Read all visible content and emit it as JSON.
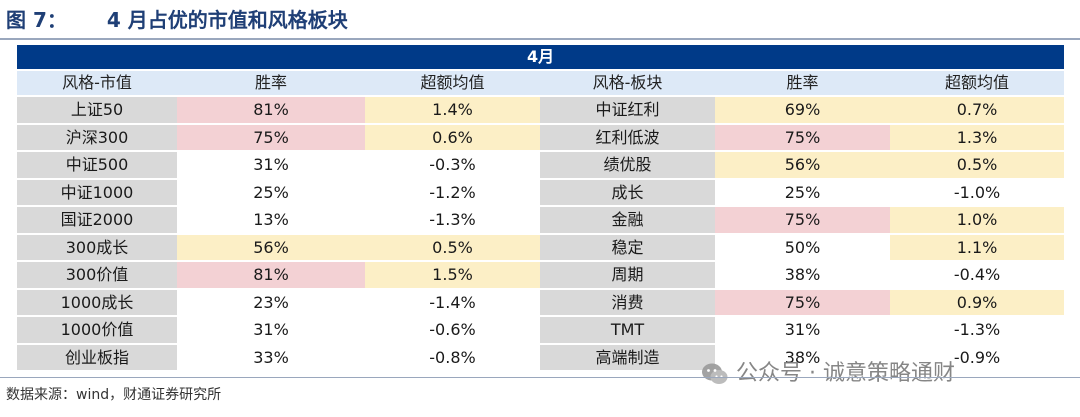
{
  "figure": {
    "label": "图 7：",
    "title": "4 月占优的市值和风格板块",
    "source": "数据来源：wind，财通证券研究所"
  },
  "table": {
    "month": "4月",
    "headers": [
      "风格-市值",
      "胜率",
      "超额均值",
      "风格-板块",
      "胜率",
      "超额均值"
    ],
    "colors": {
      "highlight_high": "#f3d1d4",
      "highlight_mid": "#fcefc6",
      "label_bg": "#d9d9d9",
      "header_bg": "#dde9f7",
      "month_bar": "#003a88"
    },
    "rows": [
      {
        "a_name": "上证50",
        "a_win": "81%",
        "a_excess": "1.4%",
        "b_name": "中证红利",
        "b_win": "69%",
        "b_excess": "0.7%",
        "hl": [
          "pink",
          "yellow",
          "yellow",
          "yellow"
        ]
      },
      {
        "a_name": "沪深300",
        "a_win": "75%",
        "a_excess": "0.6%",
        "b_name": "红利低波",
        "b_win": "75%",
        "b_excess": "1.3%",
        "hl": [
          "pink",
          "yellow",
          "pink",
          "yellow"
        ]
      },
      {
        "a_name": "中证500",
        "a_win": "31%",
        "a_excess": "-0.3%",
        "b_name": "绩优股",
        "b_win": "56%",
        "b_excess": "0.5%",
        "hl": [
          "",
          "",
          "yellow",
          "yellow"
        ]
      },
      {
        "a_name": "中证1000",
        "a_win": "25%",
        "a_excess": "-1.2%",
        "b_name": "成长",
        "b_win": "25%",
        "b_excess": "-1.0%",
        "hl": [
          "",
          "",
          "",
          ""
        ]
      },
      {
        "a_name": "国证2000",
        "a_win": "13%",
        "a_excess": "-1.3%",
        "b_name": "金融",
        "b_win": "75%",
        "b_excess": "1.0%",
        "hl": [
          "",
          "",
          "pink",
          "yellow"
        ]
      },
      {
        "a_name": "300成长",
        "a_win": "56%",
        "a_excess": "0.5%",
        "b_name": "稳定",
        "b_win": "50%",
        "b_excess": "1.1%",
        "hl": [
          "yellow",
          "yellow",
          "",
          "yellow"
        ]
      },
      {
        "a_name": "300价值",
        "a_win": "81%",
        "a_excess": "1.5%",
        "b_name": "周期",
        "b_win": "38%",
        "b_excess": "-0.4%",
        "hl": [
          "pink",
          "yellow",
          "",
          ""
        ]
      },
      {
        "a_name": "1000成长",
        "a_win": "23%",
        "a_excess": "-1.4%",
        "b_name": "消费",
        "b_win": "75%",
        "b_excess": "0.9%",
        "hl": [
          "",
          "",
          "pink",
          "yellow"
        ]
      },
      {
        "a_name": "1000价值",
        "a_win": "31%",
        "a_excess": "-0.6%",
        "b_name": "TMT",
        "b_win": "31%",
        "b_excess": "-1.3%",
        "hl": [
          "",
          "",
          "",
          ""
        ]
      },
      {
        "a_name": "创业板指",
        "a_win": "33%",
        "a_excess": "-0.8%",
        "b_name": "高端制造",
        "b_win": "38%",
        "b_excess": "-0.9%",
        "hl": [
          "",
          "",
          "",
          ""
        ]
      }
    ]
  },
  "watermark": {
    "text": "公众号 · 诚意策略通财",
    "icon": "wechat-icon"
  }
}
